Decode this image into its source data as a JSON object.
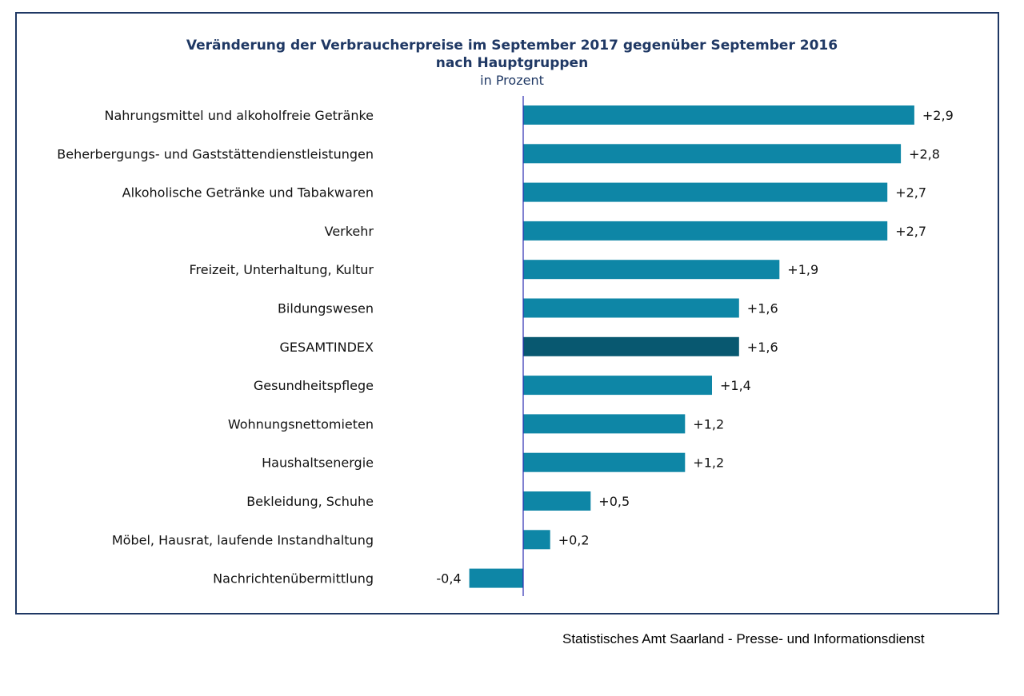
{
  "chart_data": {
    "type": "bar",
    "orientation": "horizontal",
    "title_lines": [
      "Veränderung der Verbraucherpreise im September 2017 gegenüber September 2016",
      "nach Hauptgruppen"
    ],
    "subtitle": "in Prozent",
    "categories": [
      "Nahrungsmittel und alkoholfreie Getränke",
      "Beherbergungs- und Gaststättendienstleistungen",
      "Alkoholische Getränke und Tabakwaren",
      "Verkehr",
      "Freizeit, Unterhaltung, Kultur",
      "Bildungswesen",
      "GESAMTINDEX",
      "Gesundheitspflege",
      "Wohnungsnettomieten",
      "Haushaltsenergie",
      "Bekleidung, Schuhe",
      "Möbel, Hausrat, laufende Instandhaltung",
      "Nachrichtenübermittlung"
    ],
    "values": [
      2.9,
      2.8,
      2.7,
      2.7,
      1.9,
      1.6,
      1.6,
      1.4,
      1.2,
      1.2,
      0.5,
      0.2,
      -0.4
    ],
    "value_labels": [
      "+2,9",
      "+2,8",
      "+2,7",
      "+2,7",
      "+1,9",
      "+1,6",
      "+1,6",
      "+1,4",
      "+1,2",
      "+1,2",
      "+0,5",
      "+0,2",
      "-0,4"
    ],
    "highlight_category": "GESAMTINDEX",
    "xlim": [
      -0.4,
      2.9
    ],
    "grid": false,
    "legend": "none",
    "colors": {
      "bar": "#0e86a6",
      "highlight_bar": "#085870",
      "axis": "#2b2bb0",
      "title": "#1f3864",
      "frame": "#1f3864"
    }
  },
  "footer": {
    "source": "Statistisches Amt Saarland - Presse- und Informationsdienst"
  }
}
